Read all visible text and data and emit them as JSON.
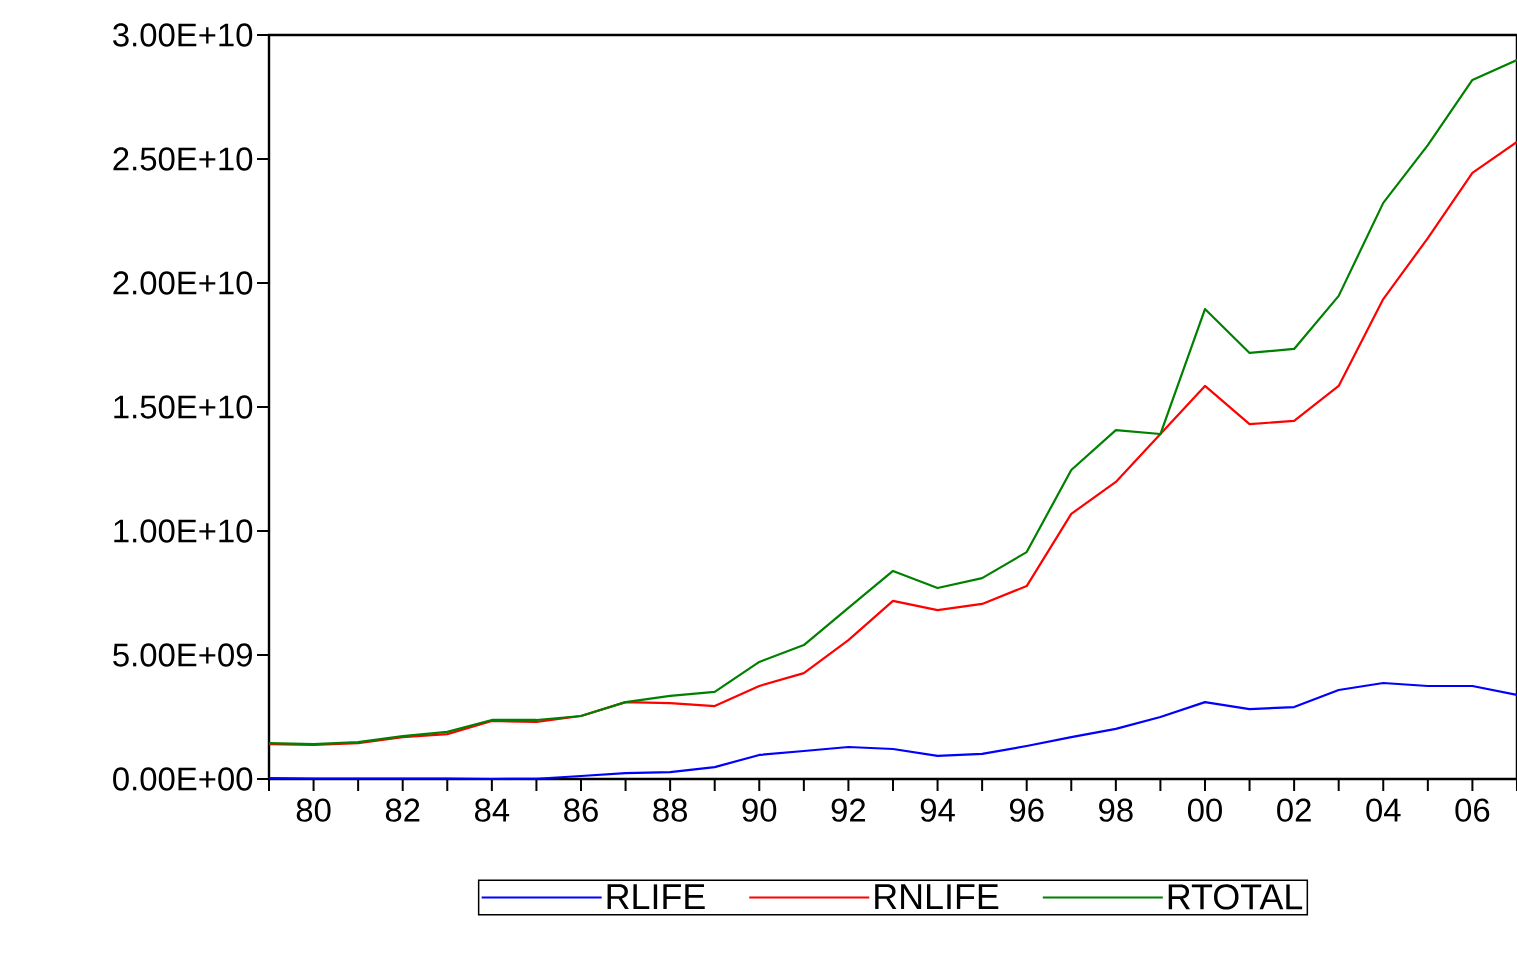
{
  "chart_data": {
    "type": "line",
    "x": [
      1979,
      1980,
      1981,
      1982,
      1983,
      1984,
      1985,
      1986,
      1987,
      1988,
      1989,
      1990,
      1991,
      1992,
      1993,
      1994,
      1995,
      1996,
      1997,
      1998,
      1999,
      2000,
      2001,
      2002,
      2003,
      2004,
      2005,
      2006,
      2007
    ],
    "series": [
      {
        "name": "RLIFE",
        "color": "#0000ff",
        "values": [
          40000000,
          20000000,
          20000000,
          20000000,
          20000000,
          0,
          10000000,
          120000000,
          240000000,
          280000000,
          480000000,
          970000000,
          1130000000,
          1290000000,
          1210000000,
          930000000,
          1010000000,
          1330000000,
          1690000000,
          2020000000,
          2500000000,
          3100000000,
          2820000000,
          2900000000,
          3590000000,
          3870000000,
          3750000000,
          3750000000,
          3390000000
        ]
      },
      {
        "name": "RNLIFE",
        "color": "#ff0000",
        "values": [
          1410000000,
          1370000000,
          1450000000,
          1690000000,
          1810000000,
          2340000000,
          2300000000,
          2540000000,
          3100000000,
          3060000000,
          2940000000,
          3750000000,
          4270000000,
          5600000000,
          7180000000,
          6810000000,
          7060000000,
          7780000000,
          10690000000,
          11980000000,
          13910000000,
          15850000000,
          14310000000,
          14440000000,
          15850000000,
          19350000000,
          21810000000,
          24440000000,
          25690000000
        ]
      },
      {
        "name": "RTOTAL",
        "color": "#008000",
        "values": [
          1450000000,
          1410000000,
          1490000000,
          1730000000,
          1900000000,
          2380000000,
          2380000000,
          2540000000,
          3100000000,
          3350000000,
          3510000000,
          4720000000,
          5400000000,
          6900000000,
          8390000000,
          7700000000,
          8100000000,
          9150000000,
          12460000000,
          14070000000,
          13910000000,
          18950000000,
          17180000000,
          17340000000,
          19480000000,
          23230000000,
          25560000000,
          28190000000,
          28990000000
        ]
      }
    ],
    "xlim": [
      1979,
      2007
    ],
    "ylim": [
      0,
      30000000000
    ],
    "xticks": [
      {
        "value": 1979,
        "label": null
      },
      {
        "value": 1980,
        "label": "80"
      },
      {
        "value": 1981,
        "label": null
      },
      {
        "value": 1982,
        "label": "82"
      },
      {
        "value": 1983,
        "label": null
      },
      {
        "value": 1984,
        "label": "84"
      },
      {
        "value": 1985,
        "label": null
      },
      {
        "value": 1986,
        "label": "86"
      },
      {
        "value": 1987,
        "label": null
      },
      {
        "value": 1988,
        "label": "88"
      },
      {
        "value": 1989,
        "label": null
      },
      {
        "value": 1990,
        "label": "90"
      },
      {
        "value": 1991,
        "label": null
      },
      {
        "value": 1992,
        "label": "92"
      },
      {
        "value": 1993,
        "label": null
      },
      {
        "value": 1994,
        "label": "94"
      },
      {
        "value": 1995,
        "label": null
      },
      {
        "value": 1996,
        "label": "96"
      },
      {
        "value": 1997,
        "label": null
      },
      {
        "value": 1998,
        "label": "98"
      },
      {
        "value": 1999,
        "label": null
      },
      {
        "value": 2000,
        "label": "00"
      },
      {
        "value": 2001,
        "label": null
      },
      {
        "value": 2002,
        "label": "02"
      },
      {
        "value": 2003,
        "label": null
      },
      {
        "value": 2004,
        "label": "04"
      },
      {
        "value": 2005,
        "label": null
      },
      {
        "value": 2006,
        "label": "06"
      },
      {
        "value": 2007,
        "label": null
      }
    ],
    "yticks": [
      {
        "value": 0,
        "label": "0.00E+00"
      },
      {
        "value": 5000000000,
        "label": "5.00E+09"
      },
      {
        "value": 10000000000,
        "label": "1.00E+10"
      },
      {
        "value": 15000000000,
        "label": "1.50E+10"
      },
      {
        "value": 20000000000,
        "label": "2.00E+10"
      },
      {
        "value": 25000000000,
        "label": "2.50E+10"
      },
      {
        "value": 30000000000,
        "label": "3.00E+10"
      }
    ],
    "legend": "bottom"
  }
}
